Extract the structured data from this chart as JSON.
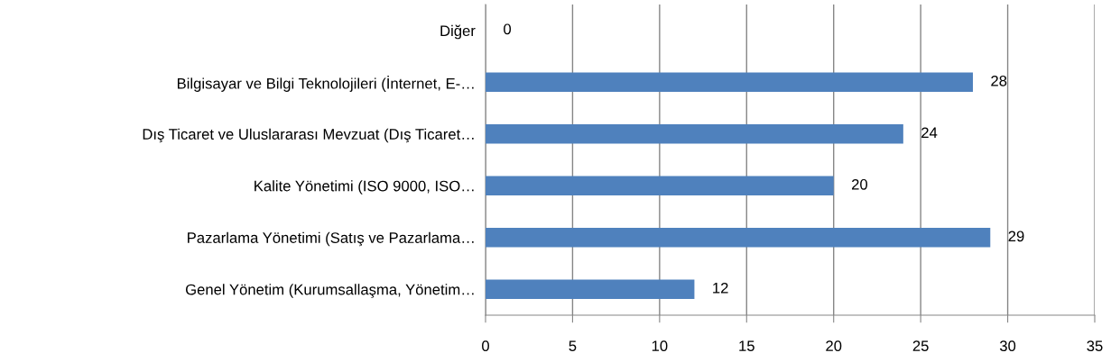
{
  "chart_data": {
    "type": "bar",
    "orientation": "horizontal",
    "categories": [
      "Diğer",
      "Bilgisayar ve Bilgi Teknolojileri (İnternet, E-…",
      "Dış Ticaret ve Uluslararası Mevzuat (Dış Ticaret…",
      "Kalite Yönetimi (ISO 9000, ISO…",
      "Pazarlama Yönetimi (Satış ve Pazarlama…",
      "Genel Yönetim (Kurumsallaşma, Yönetim…"
    ],
    "values": [
      0,
      28,
      24,
      20,
      29,
      12
    ],
    "color": "#4f81bd",
    "xlim": [
      0,
      35
    ],
    "xticks": [
      0,
      5,
      10,
      15,
      20,
      25,
      30,
      35
    ],
    "grid": "x",
    "data_labels": true
  }
}
